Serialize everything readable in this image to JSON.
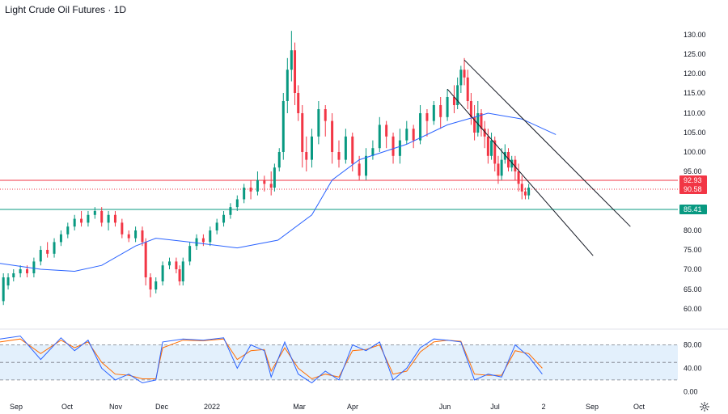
{
  "chart_data": {
    "type": "candlestick",
    "title": "Light Crude Oil Futures · 1D",
    "price_axis": {
      "ticks": [
        "130.00",
        "125.00",
        "120.00",
        "115.00",
        "110.00",
        "105.00",
        "100.00",
        "95.00",
        "80.00",
        "75.00",
        "70.00",
        "65.00",
        "60.00"
      ],
      "range": [
        57,
        132
      ]
    },
    "time_axis": {
      "ticks": [
        "Sep",
        "Oct",
        "Nov",
        "Dec",
        "2022",
        "Mar",
        "Apr",
        "Jun",
        "Jul",
        "2",
        "Sep",
        "Oct"
      ]
    },
    "price_tags": [
      {
        "label": "92.93",
        "value": 92.93,
        "color": "#f23645",
        "style": "solid"
      },
      {
        "label": "90.58",
        "value": 90.58,
        "color": "#f23645",
        "style": "dotted"
      },
      {
        "label": "85.41",
        "value": 85.41,
        "color": "#089981",
        "style": "solid"
      }
    ],
    "moving_average": {
      "color": "#2962ff",
      "points": [
        [
          0,
          71.5
        ],
        [
          0.06,
          70
        ],
        [
          0.11,
          69.5
        ],
        [
          0.15,
          71
        ],
        [
          0.2,
          76
        ],
        [
          0.23,
          78
        ],
        [
          0.28,
          77
        ],
        [
          0.35,
          75.5
        ],
        [
          0.41,
          77.5
        ],
        [
          0.46,
          84
        ],
        [
          0.49,
          93
        ],
        [
          0.53,
          98
        ],
        [
          0.6,
          102
        ],
        [
          0.66,
          107
        ],
        [
          0.72,
          110
        ],
        [
          0.77,
          108.5
        ],
        [
          0.82,
          104.5
        ]
      ]
    },
    "channel": {
      "upper": [
        [
          0.685,
          123.5
        ],
        [
          0.93,
          81
        ]
      ],
      "lower": [
        [
          0.66,
          116
        ],
        [
          0.875,
          73.5
        ]
      ]
    },
    "candles": [
      [
        0.005,
        62,
        68,
        61,
        69
      ],
      [
        0.012,
        66,
        68,
        65,
        69
      ],
      [
        0.02,
        68,
        69,
        67,
        70
      ],
      [
        0.03,
        69,
        70,
        68,
        71
      ],
      [
        0.04,
        70,
        69,
        68,
        71
      ],
      [
        0.05,
        69,
        72,
        68,
        73
      ],
      [
        0.06,
        72,
        75,
        71,
        76
      ],
      [
        0.07,
        75,
        74,
        73,
        77
      ],
      [
        0.08,
        74,
        77,
        73,
        78
      ],
      [
        0.09,
        77,
        79,
        76,
        80
      ],
      [
        0.1,
        79,
        81,
        78,
        82
      ],
      [
        0.11,
        81,
        83,
        80,
        84
      ],
      [
        0.12,
        83,
        82,
        81,
        85
      ],
      [
        0.13,
        82,
        84,
        81,
        85
      ],
      [
        0.14,
        84,
        85,
        83,
        86
      ],
      [
        0.15,
        85,
        82,
        81,
        86
      ],
      [
        0.16,
        82,
        84,
        80,
        85
      ],
      [
        0.17,
        84,
        82,
        81,
        85
      ],
      [
        0.18,
        82,
        79,
        78,
        83
      ],
      [
        0.19,
        79,
        78,
        77,
        80
      ],
      [
        0.2,
        78,
        80,
        77,
        81
      ],
      [
        0.21,
        80,
        77,
        76,
        81
      ],
      [
        0.215,
        77,
        68,
        66,
        78
      ],
      [
        0.222,
        68,
        65,
        63,
        69
      ],
      [
        0.23,
        65,
        67,
        64,
        68
      ],
      [
        0.24,
        67,
        71,
        66,
        72
      ],
      [
        0.25,
        71,
        72,
        70,
        73
      ],
      [
        0.26,
        72,
        70,
        69,
        73
      ],
      [
        0.265,
        70,
        67,
        66,
        71
      ],
      [
        0.27,
        67,
        72,
        66,
        73
      ],
      [
        0.28,
        72,
        76,
        71,
        77
      ],
      [
        0.29,
        76,
        78,
        75,
        79
      ],
      [
        0.3,
        78,
        77,
        76,
        79
      ],
      [
        0.31,
        77,
        80,
        76,
        81
      ],
      [
        0.32,
        80,
        82,
        79,
        83
      ],
      [
        0.33,
        82,
        84,
        81,
        85
      ],
      [
        0.34,
        84,
        86,
        83,
        87
      ],
      [
        0.35,
        86,
        88,
        85,
        89
      ],
      [
        0.36,
        88,
        91,
        87,
        92
      ],
      [
        0.37,
        91,
        90,
        88,
        93
      ],
      [
        0.38,
        90,
        93,
        89,
        95
      ],
      [
        0.39,
        93,
        92,
        90,
        94
      ],
      [
        0.4,
        92,
        91,
        89,
        95
      ],
      [
        0.405,
        91,
        96,
        90,
        97
      ],
      [
        0.412,
        96,
        100,
        95,
        101
      ],
      [
        0.418,
        100,
        113,
        98,
        115
      ],
      [
        0.424,
        113,
        121,
        110,
        124
      ],
      [
        0.43,
        121,
        126,
        118,
        131
      ],
      [
        0.435,
        126,
        115,
        112,
        128
      ],
      [
        0.44,
        115,
        110,
        108,
        117
      ],
      [
        0.446,
        110,
        100,
        96,
        112
      ],
      [
        0.452,
        100,
        98,
        95,
        104
      ],
      [
        0.46,
        98,
        104,
        96,
        106
      ],
      [
        0.47,
        104,
        111,
        102,
        113
      ],
      [
        0.48,
        111,
        108,
        104,
        112
      ],
      [
        0.49,
        108,
        100,
        97,
        110
      ],
      [
        0.5,
        100,
        98,
        96,
        103
      ],
      [
        0.51,
        98,
        104,
        97,
        106
      ],
      [
        0.52,
        104,
        97,
        95,
        105
      ],
      [
        0.53,
        97,
        94,
        93,
        99
      ],
      [
        0.54,
        94,
        99,
        93,
        101
      ],
      [
        0.55,
        99,
        101,
        98,
        103
      ],
      [
        0.56,
        101,
        107,
        100,
        109
      ],
      [
        0.57,
        107,
        104,
        101,
        108
      ],
      [
        0.58,
        104,
        99,
        97,
        105
      ],
      [
        0.59,
        99,
        103,
        97,
        106
      ],
      [
        0.6,
        103,
        106,
        102,
        108
      ],
      [
        0.61,
        106,
        103,
        101,
        107
      ],
      [
        0.62,
        103,
        110,
        102,
        112
      ],
      [
        0.63,
        110,
        108,
        104,
        111
      ],
      [
        0.64,
        108,
        112,
        107,
        113
      ],
      [
        0.65,
        112,
        109,
        106,
        114
      ],
      [
        0.66,
        109,
        114,
        108,
        116
      ],
      [
        0.67,
        114,
        112,
        110,
        117
      ],
      [
        0.675,
        112,
        117,
        111,
        119
      ],
      [
        0.68,
        117,
        121,
        115,
        122
      ],
      [
        0.685,
        121,
        119,
        117,
        124
      ],
      [
        0.69,
        119,
        113,
        111,
        121
      ],
      [
        0.695,
        113,
        109,
        107,
        115
      ],
      [
        0.7,
        109,
        105,
        103,
        112
      ],
      [
        0.705,
        105,
        110,
        104,
        113
      ],
      [
        0.71,
        110,
        106,
        104,
        111
      ],
      [
        0.715,
        106,
        104,
        101,
        108
      ],
      [
        0.72,
        104,
        99,
        97,
        106
      ],
      [
        0.725,
        99,
        103,
        98,
        105
      ],
      [
        0.73,
        103,
        97,
        95,
        104
      ],
      [
        0.735,
        97,
        94,
        92,
        99
      ],
      [
        0.74,
        94,
        98,
        93,
        101
      ],
      [
        0.745,
        98,
        100,
        97,
        102
      ],
      [
        0.75,
        100,
        96,
        95,
        101
      ],
      [
        0.755,
        96,
        98,
        95,
        99
      ],
      [
        0.76,
        98,
        95,
        93,
        99
      ],
      [
        0.765,
        95,
        92,
        90,
        97
      ],
      [
        0.77,
        92,
        90,
        88,
        94
      ],
      [
        0.775,
        90,
        89,
        88,
        91
      ],
      [
        0.78,
        89,
        91,
        88,
        92
      ]
    ],
    "oscillator": {
      "ticks": [
        "80.00",
        "40.00",
        "0.00"
      ],
      "range": [
        -5,
        100
      ],
      "band": [
        20,
        80
      ],
      "k_color": "#2962ff",
      "d_color": "#ff6d00",
      "k": [
        [
          0,
          90
        ],
        [
          0.03,
          95
        ],
        [
          0.06,
          55
        ],
        [
          0.09,
          92
        ],
        [
          0.11,
          70
        ],
        [
          0.13,
          88
        ],
        [
          0.15,
          40
        ],
        [
          0.17,
          20
        ],
        [
          0.19,
          30
        ],
        [
          0.21,
          15
        ],
        [
          0.23,
          20
        ],
        [
          0.24,
          85
        ],
        [
          0.27,
          90
        ],
        [
          0.3,
          88
        ],
        [
          0.33,
          92
        ],
        [
          0.35,
          40
        ],
        [
          0.37,
          80
        ],
        [
          0.39,
          70
        ],
        [
          0.4,
          25
        ],
        [
          0.42,
          85
        ],
        [
          0.44,
          30
        ],
        [
          0.46,
          15
        ],
        [
          0.48,
          35
        ],
        [
          0.5,
          20
        ],
        [
          0.52,
          80
        ],
        [
          0.54,
          70
        ],
        [
          0.56,
          85
        ],
        [
          0.58,
          20
        ],
        [
          0.6,
          40
        ],
        [
          0.62,
          75
        ],
        [
          0.64,
          90
        ],
        [
          0.66,
          88
        ],
        [
          0.68,
          85
        ],
        [
          0.7,
          20
        ],
        [
          0.72,
          30
        ],
        [
          0.74,
          25
        ],
        [
          0.76,
          80
        ],
        [
          0.78,
          60
        ],
        [
          0.8,
          30
        ]
      ],
      "d": [
        [
          0,
          85
        ],
        [
          0.03,
          90
        ],
        [
          0.06,
          65
        ],
        [
          0.09,
          88
        ],
        [
          0.11,
          75
        ],
        [
          0.13,
          85
        ],
        [
          0.15,
          50
        ],
        [
          0.17,
          30
        ],
        [
          0.19,
          28
        ],
        [
          0.21,
          22
        ],
        [
          0.23,
          22
        ],
        [
          0.24,
          75
        ],
        [
          0.27,
          88
        ],
        [
          0.3,
          87
        ],
        [
          0.33,
          90
        ],
        [
          0.35,
          55
        ],
        [
          0.37,
          70
        ],
        [
          0.39,
          72
        ],
        [
          0.4,
          35
        ],
        [
          0.42,
          75
        ],
        [
          0.44,
          40
        ],
        [
          0.46,
          22
        ],
        [
          0.48,
          30
        ],
        [
          0.5,
          25
        ],
        [
          0.52,
          70
        ],
        [
          0.54,
          72
        ],
        [
          0.56,
          80
        ],
        [
          0.58,
          30
        ],
        [
          0.6,
          35
        ],
        [
          0.62,
          68
        ],
        [
          0.64,
          85
        ],
        [
          0.66,
          88
        ],
        [
          0.68,
          86
        ],
        [
          0.7,
          30
        ],
        [
          0.72,
          28
        ],
        [
          0.74,
          28
        ],
        [
          0.76,
          70
        ],
        [
          0.78,
          65
        ],
        [
          0.8,
          40
        ]
      ]
    },
    "colors": {
      "up": "#089981",
      "down": "#f23645",
      "grid": "#e0e3eb",
      "band_fill": "#e3f0fc"
    }
  },
  "icons": {
    "settings": "gear-icon"
  }
}
